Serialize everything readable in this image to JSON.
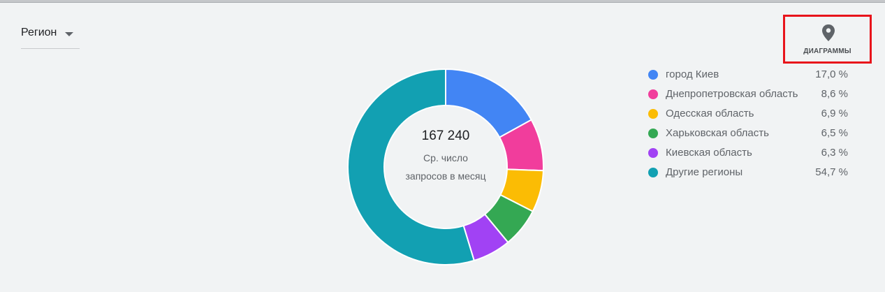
{
  "region_selector": {
    "label": "Регион",
    "caret_icon": "caret-down-icon"
  },
  "chart_toggle": {
    "icon": "map-pin-icon",
    "label": "ДИАГРАММЫ",
    "highlight_color": "#e8141b"
  },
  "chart_data": {
    "type": "pie",
    "variant": "donut",
    "center_value": "167 240",
    "center_caption": "Ср. число запросов в месяц",
    "legend_position": "right",
    "slices": [
      {
        "label": "город Киев",
        "value": 17.0,
        "display": "17,0 %",
        "color": "#4285f4"
      },
      {
        "label": "Днепропетровская область",
        "value": 8.6,
        "display": "8,6 %",
        "color": "#f13d9c"
      },
      {
        "label": "Одесская область",
        "value": 6.9,
        "display": "6,9 %",
        "color": "#fbbc04"
      },
      {
        "label": "Харьковская область",
        "value": 6.5,
        "display": "6,5 %",
        "color": "#34a853"
      },
      {
        "label": "Киевская область",
        "value": 6.3,
        "display": "6,3 %",
        "color": "#a142f4"
      },
      {
        "label": "Другие регионы",
        "value": 54.7,
        "display": "54,7 %",
        "color": "#12a0b2"
      }
    ]
  }
}
